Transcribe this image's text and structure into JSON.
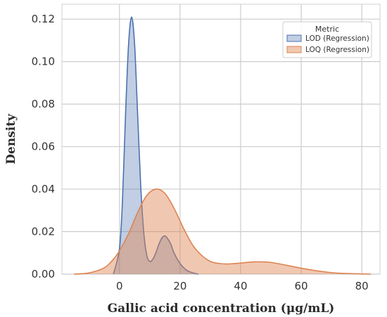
{
  "chart_data": {
    "type": "area",
    "title": "",
    "xlabel": "Gallic acid concentration (μg/mL)",
    "ylabel": "Density",
    "xlim": [
      -19,
      86
    ],
    "ylim": [
      0,
      0.127
    ],
    "xticks": [
      0,
      20,
      40,
      60,
      80
    ],
    "xtick_labels": [
      "0",
      "20",
      "40",
      "60",
      "80"
    ],
    "yticks": [
      0.0,
      0.02,
      0.04,
      0.06,
      0.08,
      0.1,
      0.12
    ],
    "ytick_labels": [
      "0.00",
      "0.02",
      "0.04",
      "0.06",
      "0.08",
      "0.10",
      "0.12"
    ],
    "grid": true,
    "legend": {
      "title": "Metric",
      "position": "upper right",
      "entries": [
        "LOD (Regression)",
        "LOQ (Regression)"
      ]
    },
    "series": [
      {
        "name": "LOD (Regression)",
        "color": "#4c72b0",
        "x": [
          -2,
          0,
          1,
          2,
          3,
          4,
          5,
          6,
          7,
          8,
          9,
          10,
          11,
          12,
          13,
          14,
          15,
          16,
          17,
          18,
          20,
          22,
          24,
          26
        ],
        "y": [
          0.0,
          0.012,
          0.035,
          0.075,
          0.108,
          0.121,
          0.108,
          0.075,
          0.042,
          0.02,
          0.009,
          0.006,
          0.007,
          0.01,
          0.014,
          0.017,
          0.018,
          0.0165,
          0.014,
          0.01,
          0.005,
          0.002,
          0.0007,
          0.0
        ]
      },
      {
        "name": "LOQ (Regression)",
        "color": "#dd8452",
        "x": [
          -15,
          -10,
          -5,
          -2,
          0,
          3,
          6,
          9,
          12,
          15,
          18,
          21,
          24,
          27,
          30,
          33,
          36,
          40,
          45,
          50,
          55,
          60,
          65,
          70,
          75,
          80,
          83
        ],
        "y": [
          0.0,
          0.0006,
          0.003,
          0.007,
          0.011,
          0.019,
          0.029,
          0.037,
          0.04,
          0.038,
          0.031,
          0.022,
          0.014,
          0.009,
          0.006,
          0.005,
          0.0048,
          0.0052,
          0.0058,
          0.0055,
          0.0042,
          0.0028,
          0.0016,
          0.0007,
          0.0003,
          0.0001,
          0.0
        ]
      }
    ]
  }
}
